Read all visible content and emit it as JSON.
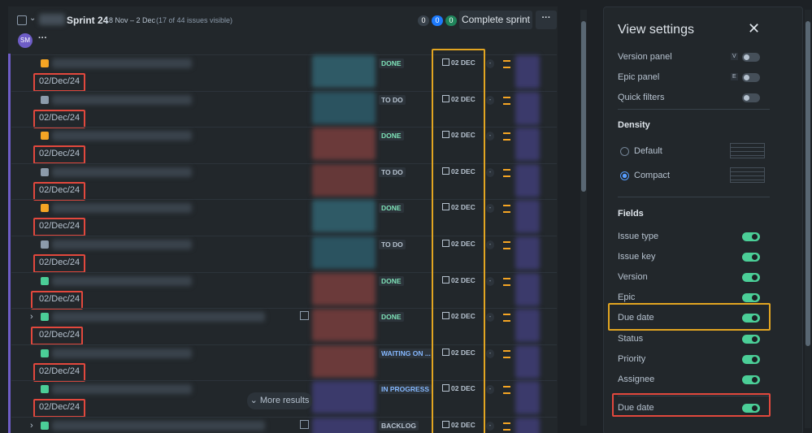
{
  "sprint": {
    "name": "Sprint 24",
    "dates": "18 Nov – 2 Dec",
    "visible": "(17 of 44 issues visible)",
    "counts": [
      {
        "text": "0",
        "color": "#38414a"
      },
      {
        "text": "0",
        "color": "#1d7afc"
      },
      {
        "text": "0",
        "color": "#1f845a"
      }
    ],
    "button": "Complete sprint",
    "avatar": "SM"
  },
  "issues": [
    {
      "status": "DONE",
      "status_color": "#7ee2b8",
      "date": "02 DEC",
      "due": "02/Dec/24",
      "icon_color": "#f5a524",
      "epic_color": "#2f5a66"
    },
    {
      "status": "TO DO",
      "status_color": "#b6c2cf",
      "date": "02 DEC",
      "due": "02/Dec/24",
      "icon_color": "#8c9bab",
      "epic_color": "#2b5360"
    },
    {
      "status": "DONE",
      "status_color": "#7ee2b8",
      "date": "02 DEC",
      "due": "02/Dec/24",
      "icon_color": "#f5a524",
      "epic_color": "#6b3a3a"
    },
    {
      "status": "TO DO",
      "status_color": "#b6c2cf",
      "date": "02 DEC",
      "due": "02/Dec/24",
      "icon_color": "#8c9bab",
      "epic_color": "#653838"
    },
    {
      "status": "DONE",
      "status_color": "#7ee2b8",
      "date": "02 DEC",
      "due": "02/Dec/24",
      "icon_color": "#f5a524",
      "epic_color": "#2f5a66"
    },
    {
      "status": "TO DO",
      "status_color": "#b6c2cf",
      "date": "02 DEC",
      "due": "02/Dec/24",
      "icon_color": "#8c9bab",
      "epic_color": "#2b5360"
    },
    {
      "status": "DONE",
      "status_color": "#7ee2b8",
      "date": "02 DEC",
      "due": "02/Dec/24",
      "icon_color": "#4bce97",
      "epic_color": "#6b3a3a"
    },
    {
      "status": "DONE",
      "status_color": "#7ee2b8",
      "date": "02 DEC",
      "due": "02/Dec/24",
      "icon_color": "#4bce97",
      "epic_color": "#6b3a3a",
      "children": true
    },
    {
      "status": "WAITING ON ...",
      "status_color": "#85b8ff",
      "date": "02 DEC",
      "due": "02/Dec/24",
      "icon_color": "#4bce97",
      "epic_color": "#6b3a3a"
    },
    {
      "status": "IN PROGRESS",
      "status_color": "#85b8ff",
      "date": "02 DEC",
      "due": "02/Dec/24",
      "icon_color": "#4bce97",
      "epic_color": "#3b3a6b"
    },
    {
      "status": "BACKLOG",
      "status_color": "#b6c2cf",
      "date": "02 DEC",
      "icon_color": "#4bce97",
      "epic_color": "#3b3a6b",
      "children": true
    }
  ],
  "more_results": "More results",
  "view_settings": {
    "title": "View settings",
    "toggles": [
      {
        "label": "Version panel",
        "key": "V",
        "on": false
      },
      {
        "label": "Epic panel",
        "key": "E",
        "on": false
      },
      {
        "label": "Quick filters",
        "on": false
      }
    ],
    "density": {
      "title": "Density",
      "options": [
        {
          "label": "Default",
          "selected": false
        },
        {
          "label": "Compact",
          "selected": true
        }
      ]
    },
    "fields": {
      "title": "Fields",
      "items": [
        {
          "label": "Issue type",
          "on": true
        },
        {
          "label": "Issue key",
          "on": true
        },
        {
          "label": "Version",
          "on": true
        },
        {
          "label": "Epic",
          "on": true
        },
        {
          "label": "Due date",
          "on": true,
          "highlight": "#e2a521"
        },
        {
          "label": "Status",
          "on": true
        },
        {
          "label": "Priority",
          "on": true
        },
        {
          "label": "Assignee",
          "on": true
        },
        {
          "label": "Due date",
          "on": true,
          "highlight": "#e2483d"
        }
      ]
    }
  }
}
